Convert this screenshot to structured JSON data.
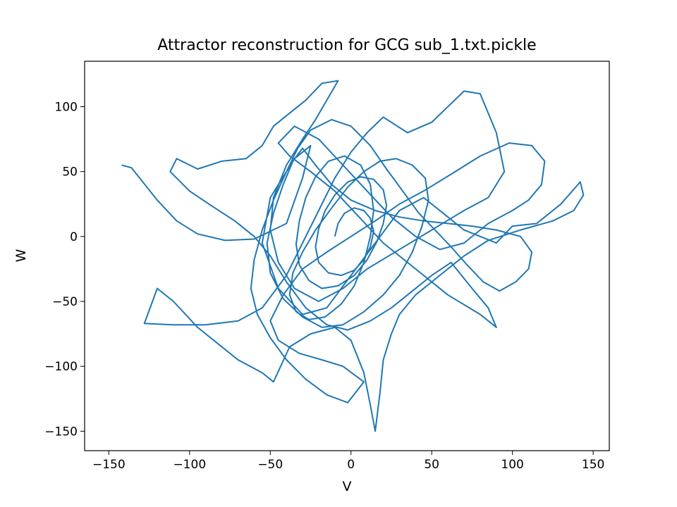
{
  "chart_data": {
    "type": "line",
    "title": "Attractor reconstruction for GCG sub_1.txt.pickle",
    "xlabel": "V",
    "ylabel": "W",
    "xlim": [
      -165,
      160
    ],
    "ylim": [
      -165,
      135
    ],
    "xticks": [
      -150,
      -100,
      -50,
      0,
      50,
      100,
      150
    ],
    "xtick_labels": [
      "−150",
      "−100",
      "−50",
      "0",
      "50",
      "100",
      "150"
    ],
    "yticks": [
      -150,
      -100,
      -50,
      0,
      50,
      100
    ],
    "ytick_labels": [
      "−150",
      "−100",
      "−50",
      "0",
      "50",
      "100"
    ],
    "grid": false,
    "legend": "none",
    "line_color": "#1f77b4",
    "series": [
      {
        "values": [
          [
            -142,
            55
          ],
          [
            -136,
            53
          ],
          [
            -120,
            28
          ],
          [
            -108,
            12
          ],
          [
            -95,
            2
          ],
          [
            -78,
            -3
          ],
          [
            -60,
            -2
          ],
          [
            -40,
            10
          ],
          [
            -30,
            45
          ],
          [
            -25,
            70
          ],
          [
            -35,
            60
          ],
          [
            -50,
            30
          ],
          [
            -55,
            -5
          ],
          [
            -45,
            -40
          ],
          [
            -30,
            -60
          ],
          [
            -15,
            -55
          ],
          [
            0,
            -30
          ],
          [
            15,
            -5
          ],
          [
            30,
            20
          ],
          [
            45,
            30
          ],
          [
            60,
            15
          ],
          [
            70,
            5
          ],
          [
            80,
            0
          ],
          [
            90,
            -5
          ],
          [
            100,
            8
          ],
          [
            115,
            10
          ],
          [
            130,
            25
          ],
          [
            142,
            42
          ],
          [
            144,
            32
          ],
          [
            138,
            20
          ],
          [
            125,
            12
          ],
          [
            105,
            5
          ],
          [
            85,
            -3
          ],
          [
            70,
            -15
          ],
          [
            55,
            -30
          ],
          [
            40,
            -45
          ],
          [
            30,
            -60
          ],
          [
            25,
            -75
          ],
          [
            20,
            -95
          ],
          [
            18,
            -120
          ],
          [
            15,
            -150
          ],
          [
            12,
            -130
          ],
          [
            8,
            -105
          ],
          [
            0,
            -80
          ],
          [
            -10,
            -70
          ],
          [
            -25,
            -75
          ],
          [
            -38,
            -85
          ],
          [
            -48,
            -112
          ],
          [
            -55,
            -105
          ],
          [
            -70,
            -95
          ],
          [
            -85,
            -80
          ],
          [
            -95,
            -70
          ],
          [
            -110,
            -50
          ],
          [
            -120,
            -40
          ],
          [
            -128,
            -67
          ],
          [
            -110,
            -68
          ],
          [
            -90,
            -68
          ],
          [
            -70,
            -65
          ],
          [
            -55,
            -55
          ],
          [
            -40,
            -30
          ],
          [
            -30,
            -5
          ],
          [
            -20,
            20
          ],
          [
            -10,
            45
          ],
          [
            0,
            65
          ],
          [
            10,
            80
          ],
          [
            20,
            92
          ],
          [
            35,
            80
          ],
          [
            50,
            88
          ],
          [
            70,
            112
          ],
          [
            80,
            110
          ],
          [
            90,
            80
          ],
          [
            95,
            50
          ],
          [
            85,
            30
          ],
          [
            70,
            20
          ],
          [
            50,
            5
          ],
          [
            30,
            -10
          ],
          [
            10,
            -25
          ],
          [
            -5,
            -40
          ],
          [
            -20,
            -50
          ],
          [
            -35,
            -40
          ],
          [
            -45,
            -20
          ],
          [
            -50,
            5
          ],
          [
            -48,
            30
          ],
          [
            -40,
            55
          ],
          [
            -30,
            75
          ],
          [
            -22,
            90
          ],
          [
            -15,
            105
          ],
          [
            -8,
            120
          ],
          [
            -18,
            118
          ],
          [
            -28,
            105
          ],
          [
            -38,
            95
          ],
          [
            -48,
            85
          ],
          [
            -55,
            70
          ],
          [
            -65,
            60
          ],
          [
            -80,
            58
          ],
          [
            -95,
            52
          ],
          [
            -108,
            60
          ],
          [
            -112,
            50
          ],
          [
            -100,
            35
          ],
          [
            -88,
            25
          ],
          [
            -72,
            12
          ],
          [
            -60,
            0
          ],
          [
            -50,
            -15
          ],
          [
            -40,
            -35
          ],
          [
            -28,
            -55
          ],
          [
            -15,
            -68
          ],
          [
            -2,
            -72
          ],
          [
            12,
            -65
          ],
          [
            25,
            -55
          ],
          [
            38,
            -42
          ],
          [
            50,
            -30
          ],
          [
            62,
            -20
          ],
          [
            75,
            -40
          ],
          [
            85,
            -55
          ],
          [
            90,
            -70
          ],
          [
            80,
            -60
          ],
          [
            60,
            -45
          ],
          [
            40,
            -25
          ],
          [
            20,
            -5
          ],
          [
            5,
            15
          ],
          [
            -10,
            35
          ],
          [
            -25,
            50
          ],
          [
            -38,
            62
          ],
          [
            -45,
            72
          ],
          [
            -35,
            85
          ],
          [
            -20,
            75
          ],
          [
            -5,
            55
          ],
          [
            10,
            35
          ],
          [
            25,
            15
          ],
          [
            40,
            0
          ],
          [
            55,
            -10
          ],
          [
            70,
            -5
          ],
          [
            85,
            10
          ],
          [
            100,
            20
          ],
          [
            110,
            28
          ],
          [
            118,
            40
          ],
          [
            120,
            58
          ],
          [
            112,
            70
          ],
          [
            98,
            72
          ],
          [
            80,
            62
          ],
          [
            62,
            48
          ],
          [
            45,
            35
          ],
          [
            30,
            25
          ],
          [
            15,
            12
          ],
          [
            0,
            0
          ],
          [
            -15,
            -12
          ],
          [
            -30,
            -25
          ],
          [
            -42,
            -45
          ],
          [
            -50,
            -65
          ],
          [
            -45,
            -80
          ],
          [
            -32,
            -90
          ],
          [
            -18,
            -95
          ],
          [
            -5,
            -100
          ],
          [
            8,
            -112
          ],
          [
            -2,
            -128
          ],
          [
            -15,
            -122
          ],
          [
            -28,
            -110
          ],
          [
            -40,
            -95
          ],
          [
            -50,
            -78
          ],
          [
            -58,
            -60
          ],
          [
            -62,
            -40
          ],
          [
            -60,
            -18
          ],
          [
            -55,
            5
          ],
          [
            -48,
            28
          ],
          [
            -40,
            50
          ],
          [
            -33,
            68
          ],
          [
            -25,
            82
          ],
          [
            -12,
            90
          ],
          [
            0,
            85
          ],
          [
            12,
            70
          ],
          [
            22,
            52
          ],
          [
            32,
            35
          ],
          [
            42,
            18
          ],
          [
            52,
            5
          ],
          [
            62,
            -8
          ],
          [
            72,
            -22
          ],
          [
            82,
            -35
          ],
          [
            92,
            -42
          ],
          [
            102,
            -35
          ],
          [
            110,
            -25
          ],
          [
            112,
            -12
          ],
          [
            105,
            0
          ],
          [
            90,
            5
          ],
          [
            75,
            8
          ],
          [
            60,
            10
          ],
          [
            45,
            12
          ],
          [
            30,
            15
          ],
          [
            15,
            20
          ],
          [
            0,
            28
          ],
          [
            -12,
            40
          ],
          [
            -22,
            55
          ],
          [
            -30,
            68
          ],
          [
            -36,
            58
          ],
          [
            -42,
            40
          ],
          [
            -48,
            18
          ],
          [
            -52,
            -5
          ],
          [
            -50,
            -28
          ],
          [
            -42,
            -48
          ],
          [
            -30,
            -62
          ],
          [
            -18,
            -70
          ],
          [
            -5,
            -68
          ],
          [
            8,
            -58
          ],
          [
            20,
            -45
          ],
          [
            30,
            -30
          ],
          [
            38,
            -12
          ],
          [
            44,
            8
          ],
          [
            48,
            28
          ],
          [
            46,
            45
          ],
          [
            38,
            55
          ],
          [
            28,
            60
          ],
          [
            18,
            58
          ],
          [
            8,
            50
          ],
          [
            -2,
            38
          ],
          [
            -12,
            22
          ],
          [
            -22,
            5
          ],
          [
            -30,
            -12
          ],
          [
            -36,
            -28
          ],
          [
            -38,
            -45
          ],
          [
            -34,
            -58
          ],
          [
            -26,
            -64
          ],
          [
            -16,
            -62
          ],
          [
            -6,
            -52
          ],
          [
            2,
            -38
          ],
          [
            8,
            -20
          ],
          [
            12,
            0
          ],
          [
            14,
            20
          ],
          [
            12,
            40
          ],
          [
            6,
            55
          ],
          [
            -4,
            62
          ],
          [
            -14,
            58
          ],
          [
            -22,
            46
          ],
          [
            -28,
            30
          ],
          [
            -32,
            12
          ],
          [
            -34,
            -6
          ],
          [
            -32,
            -22
          ],
          [
            -26,
            -34
          ],
          [
            -18,
            -40
          ],
          [
            -8,
            -38
          ],
          [
            2,
            -30
          ],
          [
            10,
            -18
          ],
          [
            16,
            -4
          ],
          [
            20,
            10
          ],
          [
            22,
            24
          ],
          [
            20,
            36
          ],
          [
            14,
            44
          ],
          [
            6,
            46
          ],
          [
            -2,
            42
          ],
          [
            -10,
            32
          ],
          [
            -16,
            20
          ],
          [
            -20,
            6
          ],
          [
            -22,
            -8
          ],
          [
            -20,
            -20
          ],
          [
            -14,
            -28
          ],
          [
            -6,
            -30
          ],
          [
            2,
            -26
          ],
          [
            8,
            -18
          ],
          [
            12,
            -8
          ],
          [
            14,
            4
          ],
          [
            12,
            14
          ],
          [
            8,
            20
          ],
          [
            2,
            22
          ],
          [
            -4,
            18
          ],
          [
            -8,
            10
          ],
          [
            -10,
            0
          ]
        ]
      }
    ]
  }
}
